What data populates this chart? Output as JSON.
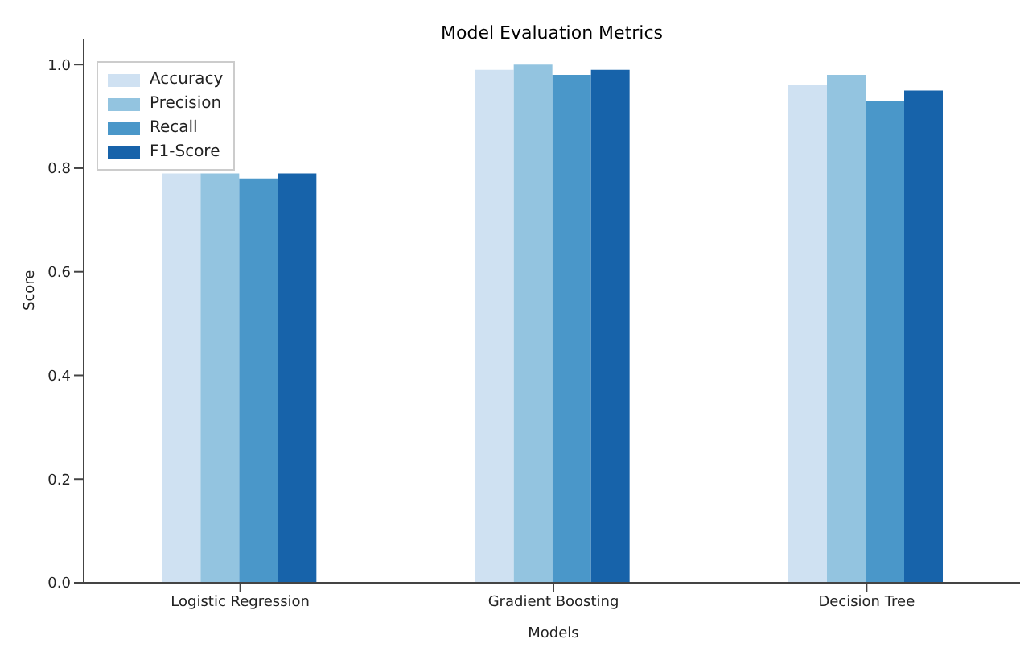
{
  "chart_data": {
    "type": "bar",
    "title": "Model Evaluation Metrics",
    "xlabel": "Models",
    "ylabel": "Score",
    "categories": [
      "Logistic Regression",
      "Gradient Boosting",
      "Decision Tree"
    ],
    "series": [
      {
        "name": "Accuracy",
        "color": "#cfe1f2",
        "values": [
          0.79,
          0.99,
          0.96
        ]
      },
      {
        "name": "Precision",
        "color": "#93c4e0",
        "values": [
          0.79,
          1.0,
          0.98
        ]
      },
      {
        "name": "Recall",
        "color": "#4a97c9",
        "values": [
          0.78,
          0.98,
          0.93
        ]
      },
      {
        "name": "F1-Score",
        "color": "#1763aa",
        "values": [
          0.79,
          0.99,
          0.95
        ]
      }
    ],
    "ylim": [
      0,
      1.05
    ],
    "yticks": [
      {
        "value": 0,
        "label": "0.0"
      },
      {
        "value": 0.2,
        "label": "0.2"
      },
      {
        "value": 0.4,
        "label": "0.4"
      },
      {
        "value": 0.6,
        "label": "0.6"
      },
      {
        "value": 0.8,
        "label": "0.8"
      },
      {
        "value": 1,
        "label": "1.0"
      }
    ],
    "grid": false,
    "legend": "top left"
  }
}
